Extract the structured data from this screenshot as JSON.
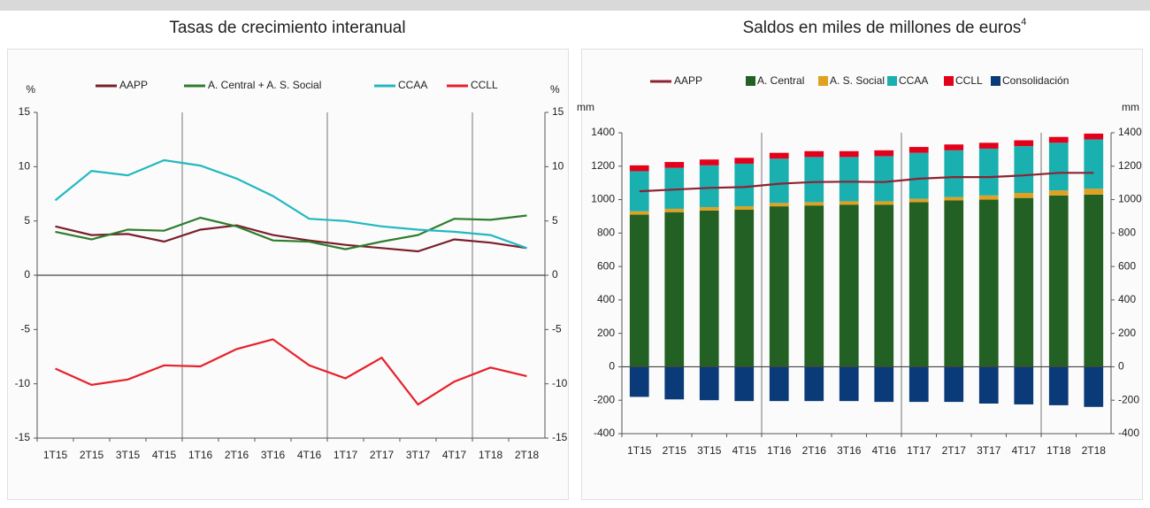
{
  "chart_data": [
    {
      "type": "line",
      "title": "Tasas de crecimiento interanual",
      "y_unit": "%",
      "categories": [
        "1T15",
        "2T15",
        "3T15",
        "4T15",
        "1T16",
        "2T16",
        "3T16",
        "4T16",
        "1T17",
        "2T17",
        "3T17",
        "4T17",
        "1T18",
        "2T18"
      ],
      "ylim": [
        -15,
        15
      ],
      "yticks": [
        -15,
        -10,
        -5,
        0,
        5,
        10,
        15
      ],
      "series": [
        {
          "name": "AAPP",
          "color": "#7a1f2b",
          "values": [
            4.5,
            3.7,
            3.8,
            3.1,
            4.2,
            4.6,
            3.7,
            3.2,
            2.8,
            2.5,
            2.2,
            3.3,
            3.0,
            2.5
          ]
        },
        {
          "name": "A. Central + A. S. Social",
          "color": "#2e7d2e",
          "values": [
            4.0,
            3.3,
            4.2,
            4.1,
            5.3,
            4.5,
            3.2,
            3.1,
            2.4,
            3.1,
            3.7,
            5.2,
            5.1,
            5.5
          ]
        },
        {
          "name": "CCAA",
          "color": "#22b8c0",
          "values": [
            6.9,
            9.6,
            9.2,
            10.6,
            10.1,
            8.9,
            7.3,
            5.2,
            5.0,
            4.5,
            4.2,
            4.0,
            3.7,
            2.5
          ]
        },
        {
          "name": "CCLL",
          "color": "#e8202a",
          "values": [
            -8.6,
            -10.1,
            -9.6,
            -8.3,
            -8.4,
            -6.8,
            -5.9,
            -8.3,
            -9.5,
            -7.6,
            -11.9,
            -9.8,
            -8.5,
            -9.3
          ]
        }
      ]
    },
    {
      "type": "bar",
      "title": "Saldos en miles de millones de euros",
      "title_footnote": "4",
      "y_unit": "mm",
      "categories": [
        "1T15",
        "2T15",
        "3T15",
        "4T15",
        "1T16",
        "2T16",
        "3T16",
        "4T16",
        "1T17",
        "2T17",
        "3T17",
        "4T17",
        "1T18",
        "2T18"
      ],
      "ylim": [
        -400,
        1400
      ],
      "yticks": [
        -400,
        -200,
        0,
        200,
        400,
        600,
        800,
        1000,
        1200,
        1400
      ],
      "series": [
        {
          "name": "AAPP",
          "type": "line",
          "color": "#8b2332",
          "values": [
            1050,
            1060,
            1070,
            1075,
            1095,
            1105,
            1107,
            1105,
            1125,
            1135,
            1135,
            1145,
            1160,
            1160
          ]
        },
        {
          "name": "A. Central",
          "color": "#236023",
          "values": [
            910,
            925,
            935,
            940,
            960,
            965,
            970,
            970,
            985,
            995,
            1000,
            1010,
            1025,
            1030
          ]
        },
        {
          "name": "A. S. Social",
          "color": "#e0a020",
          "values": [
            20,
            20,
            20,
            20,
            20,
            20,
            20,
            20,
            20,
            20,
            25,
            30,
            30,
            35
          ]
        },
        {
          "name": "CCAA",
          "color": "#1ab0b0",
          "values": [
            240,
            245,
            250,
            255,
            265,
            270,
            265,
            270,
            275,
            280,
            280,
            280,
            285,
            295
          ]
        },
        {
          "name": "CCLL",
          "color": "#e3001b",
          "values": [
            35,
            35,
            35,
            35,
            35,
            35,
            35,
            35,
            35,
            35,
            35,
            35,
            35,
            35
          ]
        },
        {
          "name": "Consolidación",
          "color": "#0a3a78",
          "values": [
            -180,
            -195,
            -200,
            -205,
            -205,
            -205,
            -205,
            -210,
            -210,
            -210,
            -220,
            -225,
            -230,
            -240
          ]
        }
      ]
    }
  ]
}
